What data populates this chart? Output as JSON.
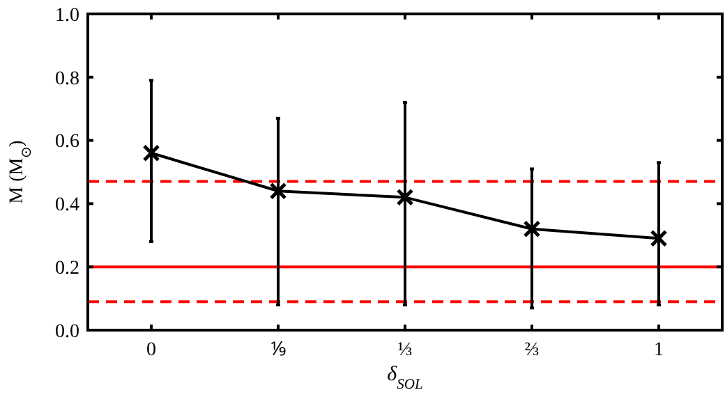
{
  "chart_data": {
    "type": "line",
    "xlabel": "δ$_{SOL}$",
    "ylabel": "M (M$_{⊙}$)",
    "categories": [
      "0",
      "⅑",
      "⅓",
      "⅔",
      "1"
    ],
    "series": [
      {
        "color": "#000000",
        "values": [
          0.56,
          0.44,
          0.42,
          0.32,
          0.29
        ],
        "errors": [
          [
            0.28,
            0.79
          ],
          [
            0.08,
            0.67
          ],
          [
            0.08,
            0.72
          ],
          [
            0.07,
            0.51
          ],
          [
            0.08,
            0.53
          ]
        ]
      }
    ],
    "ylim": [
      0,
      1
    ],
    "yticks": [
      {
        "value": 0,
        "label": "0.0"
      },
      0.2,
      0.4,
      0.6,
      0.8,
      {
        "value": 1,
        "label": "1.0"
      }
    ],
    "ref_lines": [
      {
        "axis": "y",
        "value": 0.47,
        "color": "#ff0000",
        "line_style": "dashed"
      },
      {
        "axis": "y",
        "value": 0.2,
        "color": "#ff0000",
        "line_style": "solid"
      },
      {
        "axis": "y",
        "value": 0.09,
        "color": "#ff0000",
        "line_style": "dashed"
      }
    ],
    "marker": "cross",
    "line_style": "solid",
    "grid": false
  }
}
